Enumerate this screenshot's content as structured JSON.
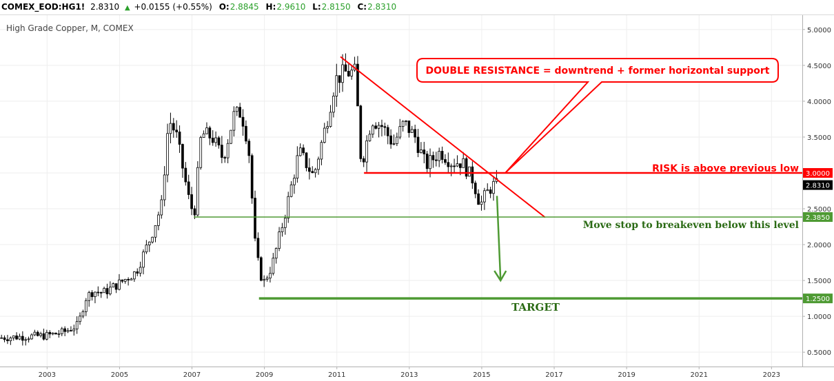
{
  "header": {
    "symbol": "COMEX_EOD:HG1!",
    "last": "2.8310",
    "change": "+0.0155 (+0.55%)",
    "open_label": "O:",
    "open": "2.8845",
    "high_label": "H:",
    "high": "2.9610",
    "low_label": "L:",
    "low": "2.8150",
    "close_label": "C:",
    "close": "2.8310"
  },
  "chart_data": {
    "type": "candlestick",
    "title": "High Grade Copper, M, COMEX",
    "x_tick_labels": [
      "2003",
      "2005",
      "2007",
      "2009",
      "2011",
      "2013",
      "2015",
      "2017",
      "2019",
      "2021",
      "2023"
    ],
    "y_tick_labels": [
      "0.5000",
      "1.0000",
      "1.5000",
      "2.0000",
      "2.5000",
      "3.0000",
      "3.5000",
      "4.0000",
      "4.5000",
      "5.0000"
    ],
    "xlim": [
      2001.7,
      2023.85
    ],
    "ylim": [
      0.3,
      5.2
    ],
    "grid": true,
    "price_tags": [
      {
        "value": 3.0,
        "label": "3.0000",
        "color": "#ff0000",
        "text_color": "#ffffff"
      },
      {
        "value": 2.831,
        "label": "2.8310",
        "color": "#000000",
        "text_color": "#ffffff"
      },
      {
        "value": 2.385,
        "label": "2.3850",
        "color": "#4e9a33",
        "text_color": "#ffffff"
      },
      {
        "value": 1.25,
        "label": "1.2500",
        "color": "#4e9a33",
        "text_color": "#ffffff"
      }
    ],
    "annotations": {
      "resistance_box": "DOUBLE RESISTANCE = downtrend + former horizontal support",
      "risk": "RISK is above previous low",
      "stop": "Move stop to breakeven below this level",
      "target": "TARGET"
    },
    "lines": [
      {
        "kind": "downtrend",
        "color": "#ff0000",
        "from": [
          2011.1,
          4.62
        ],
        "to": [
          2016.75,
          2.38
        ],
        "width": 2
      },
      {
        "kind": "previous-low",
        "color": "#ff0000",
        "from": [
          2011.75,
          3.0
        ],
        "to": [
          2023.85,
          3.0
        ],
        "width": 2.5
      },
      {
        "kind": "breakeven-level",
        "color": "#4e9a33",
        "from": [
          2007.05,
          2.385
        ],
        "to": [
          2023.85,
          2.385
        ],
        "width": 1.5
      },
      {
        "kind": "target-level",
        "color": "#4e9a33",
        "from": [
          2008.85,
          1.25
        ],
        "to": [
          2023.85,
          1.25
        ],
        "width": 3.5
      }
    ],
    "projection_arrow": {
      "color": "#4e9a33",
      "from": [
        2015.42,
        2.68
      ],
      "to": [
        2015.52,
        1.5
      ]
    },
    "anchors": [
      {
        "x": 2001.7,
        "p": 0.7
      },
      {
        "x": 2002.5,
        "p": 0.72
      },
      {
        "x": 2003.0,
        "p": 0.73
      },
      {
        "x": 2003.5,
        "p": 0.78
      },
      {
        "x": 2003.9,
        "p": 0.88
      },
      {
        "x": 2004.1,
        "p": 1.25
      },
      {
        "x": 2004.3,
        "p": 1.35
      },
      {
        "x": 2004.6,
        "p": 1.33
      },
      {
        "x": 2005.0,
        "p": 1.45
      },
      {
        "x": 2005.5,
        "p": 1.62
      },
      {
        "x": 2005.9,
        "p": 2.1
      },
      {
        "x": 2006.2,
        "p": 2.55
      },
      {
        "x": 2006.4,
        "p": 3.75
      },
      {
        "x": 2006.6,
        "p": 3.55
      },
      {
        "x": 2006.95,
        "p": 2.65
      },
      {
        "x": 2007.1,
        "p": 2.4
      },
      {
        "x": 2007.3,
        "p": 3.55
      },
      {
        "x": 2007.6,
        "p": 3.5
      },
      {
        "x": 2007.9,
        "p": 3.2
      },
      {
        "x": 2008.2,
        "p": 3.8
      },
      {
        "x": 2008.4,
        "p": 3.85
      },
      {
        "x": 2008.6,
        "p": 3.4
      },
      {
        "x": 2008.8,
        "p": 1.9
      },
      {
        "x": 2009.0,
        "p": 1.45
      },
      {
        "x": 2009.25,
        "p": 1.7
      },
      {
        "x": 2009.6,
        "p": 2.4
      },
      {
        "x": 2010.0,
        "p": 3.3
      },
      {
        "x": 2010.4,
        "p": 2.95
      },
      {
        "x": 2010.8,
        "p": 3.8
      },
      {
        "x": 2011.0,
        "p": 4.3
      },
      {
        "x": 2011.25,
        "p": 4.4
      },
      {
        "x": 2011.55,
        "p": 4.4
      },
      {
        "x": 2011.72,
        "p": 3.1
      },
      {
        "x": 2012.0,
        "p": 3.75
      },
      {
        "x": 2012.3,
        "p": 3.65
      },
      {
        "x": 2012.6,
        "p": 3.4
      },
      {
        "x": 2012.9,
        "p": 3.7
      },
      {
        "x": 2013.2,
        "p": 3.5
      },
      {
        "x": 2013.5,
        "p": 3.1
      },
      {
        "x": 2013.9,
        "p": 3.3
      },
      {
        "x": 2014.2,
        "p": 3.15
      },
      {
        "x": 2014.5,
        "p": 3.15
      },
      {
        "x": 2014.8,
        "p": 2.9
      },
      {
        "x": 2015.0,
        "p": 2.55
      },
      {
        "x": 2015.15,
        "p": 2.7
      },
      {
        "x": 2015.35,
        "p": 2.83
      }
    ]
  }
}
